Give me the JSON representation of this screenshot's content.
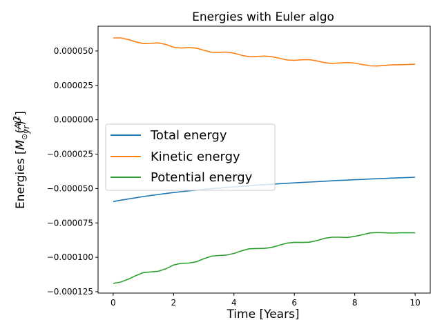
{
  "chart_data": {
    "type": "line",
    "title": "Energies with Euler algo",
    "xlabel": "Time [Years]",
    "ylabel": "Energies [M_sun (AU/yr)^2]",
    "xlim": [
      -0.5,
      10.5
    ],
    "ylim": [
      -0.000126,
      6.8e-05
    ],
    "x_ticks": [
      0,
      2,
      4,
      6,
      8,
      10
    ],
    "x_tick_labels": [
      "0",
      "2",
      "4",
      "6",
      "8",
      "10"
    ],
    "y_ticks": [
      5e-05,
      2.5e-05,
      0.0,
      -2.5e-05,
      -5e-05,
      -7.5e-05,
      -0.0001,
      -0.000125
    ],
    "y_tick_labels": [
      "0.000050",
      "0.000025",
      "0.000000",
      "−0.000025",
      "−0.000050",
      "−0.000075",
      "−0.000100",
      "−0.000125"
    ],
    "grid": false,
    "legend_position": "center-left",
    "x": [
      0,
      0.25,
      0.5,
      0.75,
      1,
      1.25,
      1.5,
      1.75,
      2,
      2.25,
      2.5,
      2.75,
      3,
      3.25,
      3.5,
      3.75,
      4,
      4.25,
      4.5,
      4.75,
      5,
      5.25,
      5.5,
      5.75,
      6,
      6.25,
      6.5,
      6.75,
      7,
      7.25,
      7.5,
      7.75,
      8,
      8.25,
      8.5,
      8.75,
      9,
      9.25,
      9.5,
      9.75,
      10
    ],
    "series": [
      {
        "name": "Total energy",
        "color": "#1f77b4",
        "values": [
          -5.95e-05,
          -5.85e-05,
          -5.76e-05,
          -5.67e-05,
          -5.58e-05,
          -5.5e-05,
          -5.43e-05,
          -5.36e-05,
          -5.29e-05,
          -5.23e-05,
          -5.17e-05,
          -5.12e-05,
          -5.06e-05,
          -5.01e-05,
          -4.97e-05,
          -4.92e-05,
          -4.88e-05,
          -4.84e-05,
          -4.8e-05,
          -4.76e-05,
          -4.72e-05,
          -4.69e-05,
          -4.65e-05,
          -4.62e-05,
          -4.59e-05,
          -4.56e-05,
          -4.53e-05,
          -4.5e-05,
          -4.47e-05,
          -4.44e-05,
          -4.41e-05,
          -4.39e-05,
          -4.36e-05,
          -4.34e-05,
          -4.31e-05,
          -4.29e-05,
          -4.27e-05,
          -4.24e-05,
          -4.22e-05,
          -4.2e-05,
          -4.18e-05
        ]
      },
      {
        "name": "Kinetic energy",
        "color": "#ff7f0e",
        "values": [
          5.95e-05,
          5.95e-05,
          5.83e-05,
          5.66e-05,
          5.53e-05,
          5.56e-05,
          5.58e-05,
          5.47e-05,
          5.27e-05,
          5.21e-05,
          5.25e-05,
          5.21e-05,
          5.05e-05,
          4.91e-05,
          4.9e-05,
          4.92e-05,
          4.84e-05,
          4.69e-05,
          4.58e-05,
          4.6e-05,
          4.63e-05,
          4.59e-05,
          4.47e-05,
          4.35e-05,
          4.32e-05,
          4.36e-05,
          4.37e-05,
          4.28e-05,
          4.15e-05,
          4.1e-05,
          4.13e-05,
          4.16e-05,
          4.12e-05,
          4.02e-05,
          3.92e-05,
          3.91e-05,
          3.95e-05,
          4e-05,
          4e-05,
          4.02e-05,
          4.04e-05
        ]
      },
      {
        "name": "Potential energy",
        "color": "#2ca02c",
        "values": [
          -0.000119,
          -0.000118,
          -0.0001159,
          -0.0001133,
          -0.0001111,
          -0.0001106,
          -0.0001101,
          -0.0001083,
          -0.0001056,
          -0.0001044,
          -0.0001042,
          -0.0001033,
          -0.0001011,
          -9.92e-05,
          -9.87e-05,
          -9.84e-05,
          -9.72e-05,
          -9.53e-05,
          -9.38e-05,
          -9.36e-05,
          -9.35e-05,
          -9.28e-05,
          -9.12e-05,
          -8.97e-05,
          -8.91e-05,
          -8.92e-05,
          -8.9e-05,
          -8.78e-05,
          -8.62e-05,
          -8.54e-05,
          -8.54e-05,
          -8.56e-05,
          -8.48e-05,
          -8.36e-05,
          -8.23e-05,
          -8.2e-05,
          -8.22e-05,
          -8.24e-05,
          -8.22e-05,
          -8.22e-05,
          -8.22e-05
        ]
      }
    ]
  }
}
